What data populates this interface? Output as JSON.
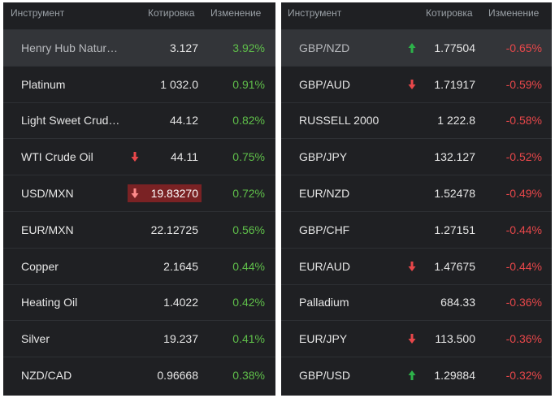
{
  "left": {
    "header": {
      "instrument": "Инструмент",
      "quote": "Котировка",
      "change": "Изменение"
    },
    "rows": [
      {
        "name": "Henry Hub Natur…",
        "price": "3.127",
        "change": "3.92%",
        "dir": "up",
        "arrow": null,
        "highlight": true,
        "flash": false
      },
      {
        "name": "Platinum",
        "price": "1 032.0",
        "change": "0.91%",
        "dir": "up",
        "arrow": null,
        "highlight": false,
        "flash": false
      },
      {
        "name": "Light Sweet Crud…",
        "price": "44.12",
        "change": "0.82%",
        "dir": "up",
        "arrow": null,
        "highlight": false,
        "flash": false
      },
      {
        "name": "WTI Crude Oil",
        "price": "44.11",
        "change": "0.75%",
        "dir": "up",
        "arrow": "down",
        "highlight": false,
        "flash": false
      },
      {
        "name": "USD/MXN",
        "price": "19.83270",
        "change": "0.72%",
        "dir": "up",
        "arrow": "down",
        "highlight": false,
        "flash": true
      },
      {
        "name": "EUR/MXN",
        "price": "22.12725",
        "change": "0.56%",
        "dir": "up",
        "arrow": null,
        "highlight": false,
        "flash": false
      },
      {
        "name": "Copper",
        "price": "2.1645",
        "change": "0.44%",
        "dir": "up",
        "arrow": null,
        "highlight": false,
        "flash": false
      },
      {
        "name": "Heating Oil",
        "price": "1.4022",
        "change": "0.42%",
        "dir": "up",
        "arrow": null,
        "highlight": false,
        "flash": false
      },
      {
        "name": "Silver",
        "price": "19.237",
        "change": "0.41%",
        "dir": "up",
        "arrow": null,
        "highlight": false,
        "flash": false
      },
      {
        "name": "NZD/CAD",
        "price": "0.96668",
        "change": "0.38%",
        "dir": "up",
        "arrow": null,
        "highlight": false,
        "flash": false
      }
    ]
  },
  "right": {
    "header": {
      "instrument": "Инструмент",
      "quote": "Котировка",
      "change": "Изменение"
    },
    "rows": [
      {
        "name": "GBP/NZD",
        "price": "1.77504",
        "change": "-0.65%",
        "dir": "down",
        "arrow": "up",
        "highlight": true,
        "flash": false
      },
      {
        "name": "GBP/AUD",
        "price": "1.71917",
        "change": "-0.59%",
        "dir": "down",
        "arrow": "down",
        "highlight": false,
        "flash": false
      },
      {
        "name": "RUSSELL 2000",
        "price": "1 222.8",
        "change": "-0.58%",
        "dir": "down",
        "arrow": null,
        "highlight": false,
        "flash": false
      },
      {
        "name": "GBP/JPY",
        "price": "132.127",
        "change": "-0.52%",
        "dir": "down",
        "arrow": null,
        "highlight": false,
        "flash": false
      },
      {
        "name": "EUR/NZD",
        "price": "1.52478",
        "change": "-0.49%",
        "dir": "down",
        "arrow": null,
        "highlight": false,
        "flash": false
      },
      {
        "name": "GBP/CHF",
        "price": "1.27151",
        "change": "-0.44%",
        "dir": "down",
        "arrow": null,
        "highlight": false,
        "flash": false
      },
      {
        "name": "EUR/AUD",
        "price": "1.47675",
        "change": "-0.44%",
        "dir": "down",
        "arrow": "down",
        "highlight": false,
        "flash": false
      },
      {
        "name": "Palladium",
        "price": "684.33",
        "change": "-0.36%",
        "dir": "down",
        "arrow": null,
        "highlight": false,
        "flash": false
      },
      {
        "name": "EUR/JPY",
        "price": "113.500",
        "change": "-0.36%",
        "dir": "down",
        "arrow": "down",
        "highlight": false,
        "flash": false
      },
      {
        "name": "GBP/USD",
        "price": "1.29884",
        "change": "-0.32%",
        "dir": "down",
        "arrow": "up",
        "highlight": false,
        "flash": false
      }
    ]
  },
  "colors": {
    "up": "#5fbf4a",
    "down": "#e8474a",
    "arrow_up": "#2db34a",
    "arrow_down": "#e8474a"
  }
}
